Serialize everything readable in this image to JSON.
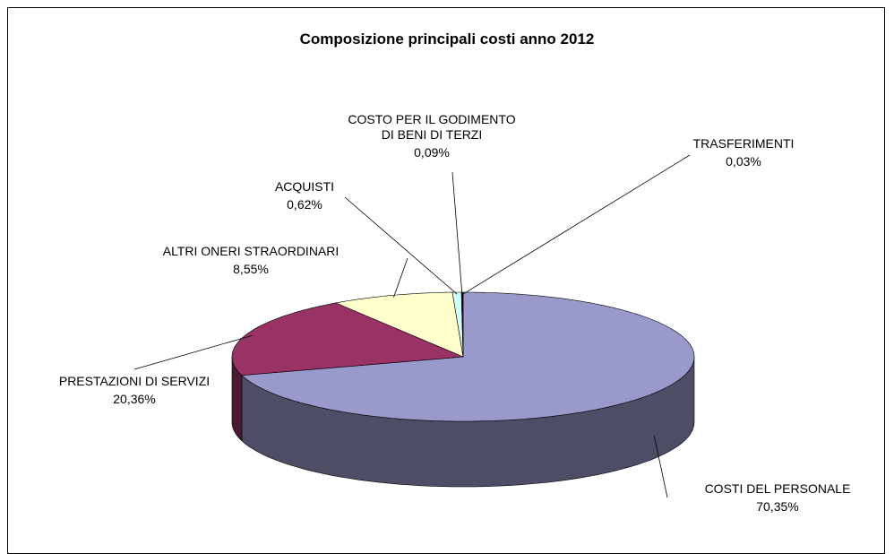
{
  "chart_data": {
    "type": "pie3d",
    "title": "Composizione principali costi anno 2012",
    "categories": [
      "COSTI DEL PERSONALE",
      "PRESTAZIONI DI SERVIZI",
      "ALTRI ONERI STRAORDINARI",
      "ACQUISTI",
      "COSTO PER IL GODIMENTO DI BENI DI TERZI",
      "TRASFERIMENTI"
    ],
    "values": [
      70.35,
      20.36,
      8.55,
      0.62,
      0.09,
      0.03
    ],
    "value_labels": [
      "70,35%",
      "20,36%",
      "8,55%",
      "0,62%",
      "0,09%",
      "0,03%"
    ],
    "colors": [
      "#9999cc",
      "#993366",
      "#ffffcc",
      "#ccffff",
      "#660066",
      "#ff8080"
    ]
  }
}
